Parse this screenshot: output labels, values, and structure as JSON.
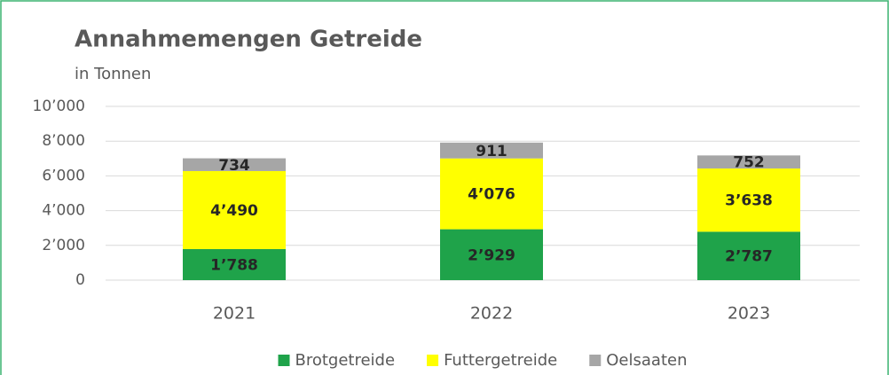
{
  "chart_data": {
    "type": "stacked_bar",
    "title": "Annahmemengen Getreide",
    "subtitle": "in Tonnen",
    "categories": [
      "2021",
      "2022",
      "2023"
    ],
    "series": [
      {
        "name": "Brotgetreide",
        "color": "#1fa34a",
        "values": [
          1788,
          2929,
          2787
        ],
        "value_labels": [
          "1’788",
          "2’929",
          "2’787"
        ]
      },
      {
        "name": "Futtergetreide",
        "color": "#ffff00",
        "values": [
          4490,
          4076,
          3638
        ],
        "value_labels": [
          "4’490",
          "4’076",
          "3’638"
        ]
      },
      {
        "name": "Oelsaaten",
        "color": "#a6a6a6",
        "values": [
          734,
          911,
          752
        ],
        "value_labels": [
          "734",
          "911",
          "752"
        ]
      }
    ],
    "ylim": [
      0,
      10000
    ],
    "yticks": [
      0,
      {
        "value": 2000,
        "label": "2’000"
      },
      {
        "value": 4000,
        "label": "4’000"
      },
      {
        "value": 6000,
        "label": "6’000"
      },
      {
        "value": 8000,
        "label": "8’000"
      },
      {
        "value": 10000,
        "label": "10’000"
      }
    ],
    "grid": true,
    "legend": "bottom"
  }
}
